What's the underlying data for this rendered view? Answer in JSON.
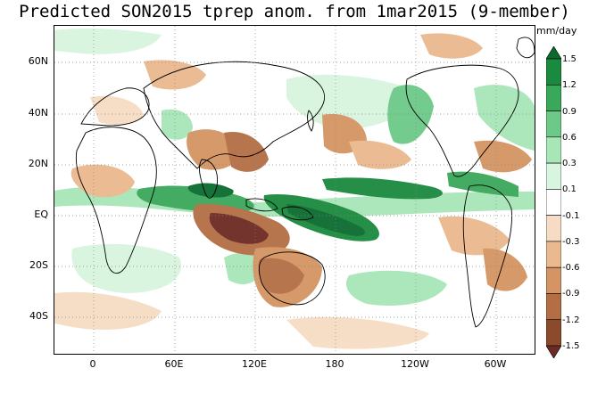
{
  "map": {
    "title": "Predicted SON2015 tprep anom. from 1mar2015 (9-member)",
    "units": "mm/day",
    "lat_labels": [
      "60N",
      "40N",
      "20N",
      "EQ",
      "20S",
      "40S"
    ],
    "lon_labels": [
      "0",
      "60E",
      "120E",
      "180",
      "120W",
      "60W"
    ],
    "colorbar": {
      "labels": [
        "1.5",
        "1.2",
        "0.9",
        "0.6",
        "0.3",
        "0.1",
        "-0.1",
        "-0.3",
        "-0.6",
        "-0.9",
        "-1.2",
        "-1.5"
      ],
      "colors": [
        "#0a6b2e",
        "#1a8a3e",
        "#3aa85a",
        "#6cc987",
        "#a8e6b8",
        "#d8f5df",
        "#ffffff",
        "#f6dcc4",
        "#eab98f",
        "#d49463",
        "#b46e45",
        "#8c4a2c",
        "#6b2a22"
      ]
    }
  }
}
